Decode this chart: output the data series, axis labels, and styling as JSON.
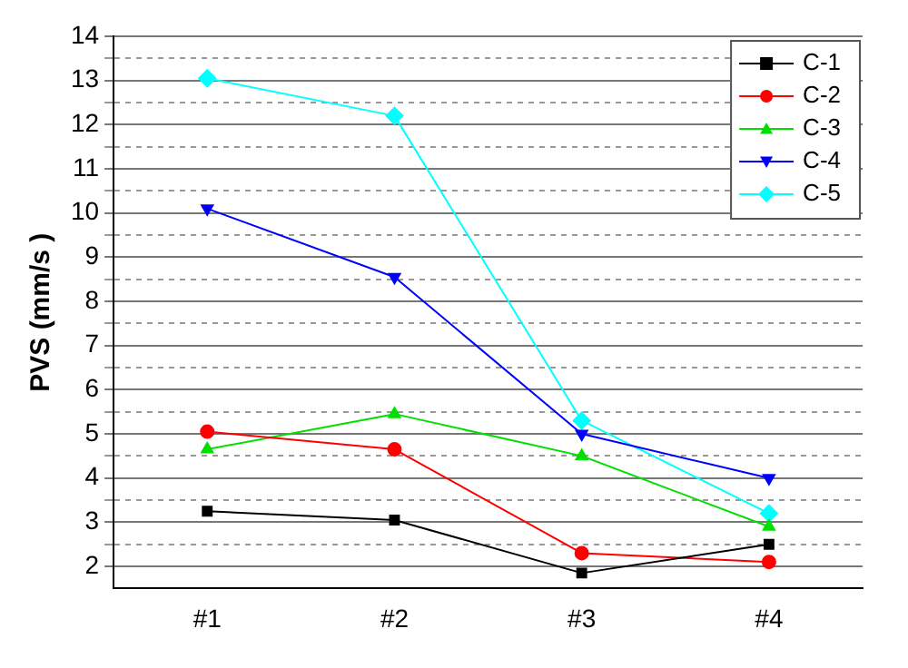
{
  "chart_data": {
    "type": "line",
    "ylabel": "PVS (mm/s )",
    "categories": [
      "#1",
      "#2",
      "#3",
      "#4"
    ],
    "series": [
      {
        "name": "C-1",
        "color": "#000000",
        "marker": "square",
        "values": [
          3.25,
          3.05,
          1.85,
          2.5
        ]
      },
      {
        "name": "C-2",
        "color": "#ff0000",
        "marker": "circle",
        "values": [
          5.05,
          4.65,
          2.3,
          2.1
        ]
      },
      {
        "name": "C-3",
        "color": "#00e000",
        "marker": "triangle",
        "values": [
          4.65,
          5.45,
          4.5,
          2.9
        ]
      },
      {
        "name": "C-4",
        "color": "#0000ff",
        "marker": "triangle-down",
        "values": [
          10.1,
          8.55,
          5.0,
          4.0
        ]
      },
      {
        "name": "C-5",
        "color": "#00ffff",
        "marker": "diamond",
        "values": [
          13.05,
          12.2,
          5.3,
          3.2
        ]
      }
    ],
    "ylim": [
      1.5,
      14
    ],
    "yticks": [
      2,
      {
        "value": 2.5,
        "label": null
      },
      3,
      {
        "value": 3.5,
        "label": null
      },
      4,
      {
        "value": 4.5,
        "label": null
      },
      5,
      {
        "value": 5.5,
        "label": null
      },
      6,
      {
        "value": 6.5,
        "label": null
      },
      7,
      {
        "value": 7.5,
        "label": null
      },
      8,
      {
        "value": 8.5,
        "label": null
      },
      9,
      {
        "value": 9.5,
        "label": null
      },
      10,
      {
        "value": 10.5,
        "label": null
      },
      11,
      {
        "value": 11.5,
        "label": null
      },
      12,
      {
        "value": 12.5,
        "label": null
      },
      13,
      {
        "value": 13.5,
        "label": null
      },
      14
    ],
    "grid": "y",
    "legend": "top right",
    "line_style": "solid"
  }
}
